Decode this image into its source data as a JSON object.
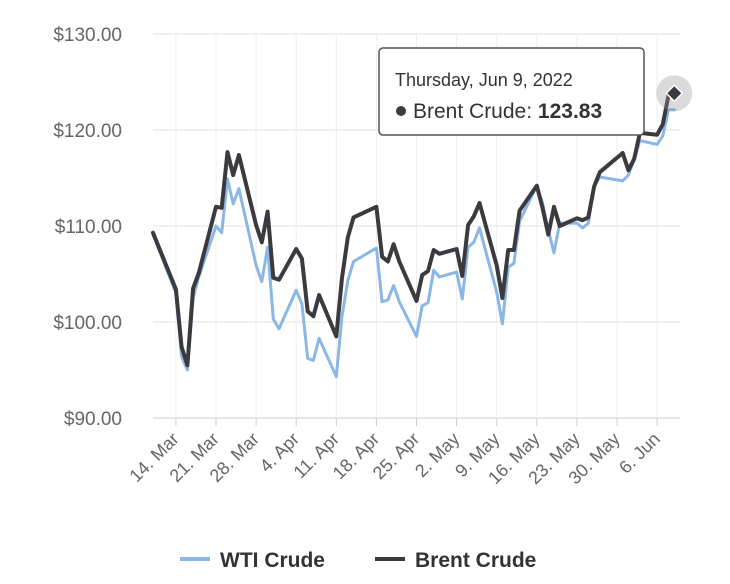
{
  "chart_data": {
    "type": "line",
    "title": "",
    "xlabel": "",
    "ylabel": "",
    "ylim": [
      90,
      130
    ],
    "y_ticks": [
      "$90.00",
      "$100.00",
      "$110.00",
      "$120.00",
      "$130.00"
    ],
    "x_ticks": [
      "14. Mar",
      "21. Mar",
      "28. Mar",
      "4. Apr",
      "11. Apr",
      "18. Apr",
      "25. Apr",
      "2. May",
      "9. May",
      "16. May",
      "23. May",
      "30. May",
      "6. Jun"
    ],
    "x_range": [
      "2022-03-10",
      "2022-06-10"
    ],
    "grid": true,
    "legend_position": "bottom",
    "series": [
      {
        "name": "WTI Crude",
        "color": "#8bb7e6",
        "points": [
          [
            "2022-03-10",
            109.1
          ],
          [
            "2022-03-14",
            103.0
          ],
          [
            "2022-03-15",
            96.4
          ],
          [
            "2022-03-16",
            95.0
          ],
          [
            "2022-03-17",
            102.5
          ],
          [
            "2022-03-18",
            104.7
          ],
          [
            "2022-03-21",
            110.0
          ],
          [
            "2022-03-22",
            109.3
          ],
          [
            "2022-03-23",
            114.9
          ],
          [
            "2022-03-24",
            112.3
          ],
          [
            "2022-03-25",
            113.9
          ],
          [
            "2022-03-28",
            105.9
          ],
          [
            "2022-03-29",
            104.2
          ],
          [
            "2022-03-30",
            107.8
          ],
          [
            "2022-03-31",
            100.3
          ],
          [
            "2022-04-01",
            99.3
          ],
          [
            "2022-04-04",
            103.3
          ],
          [
            "2022-04-05",
            101.9
          ],
          [
            "2022-04-06",
            96.2
          ],
          [
            "2022-04-07",
            96.0
          ],
          [
            "2022-04-08",
            98.3
          ],
          [
            "2022-04-11",
            94.3
          ],
          [
            "2022-04-12",
            100.6
          ],
          [
            "2022-04-13",
            104.3
          ],
          [
            "2022-04-14",
            106.3
          ],
          [
            "2022-04-18",
            107.7
          ],
          [
            "2022-04-19",
            102.1
          ],
          [
            "2022-04-20",
            102.3
          ],
          [
            "2022-04-21",
            103.8
          ],
          [
            "2022-04-22",
            102.1
          ],
          [
            "2022-04-25",
            98.5
          ],
          [
            "2022-04-26",
            101.7
          ],
          [
            "2022-04-27",
            102.0
          ],
          [
            "2022-04-28",
            105.4
          ],
          [
            "2022-04-29",
            104.7
          ],
          [
            "2022-05-02",
            105.2
          ],
          [
            "2022-05-03",
            102.4
          ],
          [
            "2022-05-04",
            107.8
          ],
          [
            "2022-05-05",
            108.3
          ],
          [
            "2022-05-06",
            109.8
          ],
          [
            "2022-05-09",
            103.1
          ],
          [
            "2022-05-10",
            99.8
          ],
          [
            "2022-05-11",
            105.7
          ],
          [
            "2022-05-12",
            106.1
          ],
          [
            "2022-05-13",
            110.5
          ],
          [
            "2022-05-16",
            114.2
          ],
          [
            "2022-05-17",
            112.4
          ],
          [
            "2022-05-18",
            109.6
          ],
          [
            "2022-05-19",
            107.2
          ],
          [
            "2022-05-20",
            110.3
          ],
          [
            "2022-05-23",
            110.3
          ],
          [
            "2022-05-24",
            109.8
          ],
          [
            "2022-05-25",
            110.3
          ],
          [
            "2022-05-26",
            114.1
          ],
          [
            "2022-05-27",
            115.1
          ],
          [
            "2022-05-31",
            114.7
          ],
          [
            "2022-06-01",
            115.3
          ],
          [
            "2022-06-02",
            116.9
          ],
          [
            "2022-06-03",
            118.9
          ],
          [
            "2022-06-06",
            118.5
          ],
          [
            "2022-06-07",
            119.4
          ],
          [
            "2022-06-08",
            122.1
          ],
          [
            "2022-06-09",
            122.1
          ]
        ]
      },
      {
        "name": "Brent Crude",
        "color": "#3a3a3f",
        "points": [
          [
            "2022-03-10",
            109.3
          ],
          [
            "2022-03-14",
            103.4
          ],
          [
            "2022-03-15",
            97.4
          ],
          [
            "2022-03-16",
            95.5
          ],
          [
            "2022-03-17",
            103.5
          ],
          [
            "2022-03-18",
            105.1
          ],
          [
            "2022-03-21",
            112.0
          ],
          [
            "2022-03-22",
            111.9
          ],
          [
            "2022-03-23",
            117.7
          ],
          [
            "2022-03-24",
            115.3
          ],
          [
            "2022-03-25",
            117.4
          ],
          [
            "2022-03-28",
            110.1
          ],
          [
            "2022-03-29",
            108.3
          ],
          [
            "2022-03-30",
            111.5
          ],
          [
            "2022-03-31",
            104.6
          ],
          [
            "2022-04-01",
            104.4
          ],
          [
            "2022-04-04",
            107.6
          ],
          [
            "2022-04-05",
            106.6
          ],
          [
            "2022-04-06",
            101.1
          ],
          [
            "2022-04-07",
            100.6
          ],
          [
            "2022-04-08",
            102.8
          ],
          [
            "2022-04-11",
            98.5
          ],
          [
            "2022-04-12",
            104.6
          ],
          [
            "2022-04-13",
            108.8
          ],
          [
            "2022-04-14",
            110.9
          ],
          [
            "2022-04-18",
            112.0
          ],
          [
            "2022-04-19",
            106.8
          ],
          [
            "2022-04-20",
            106.3
          ],
          [
            "2022-04-21",
            108.1
          ],
          [
            "2022-04-22",
            106.3
          ],
          [
            "2022-04-25",
            102.2
          ],
          [
            "2022-04-26",
            104.9
          ],
          [
            "2022-04-27",
            105.3
          ],
          [
            "2022-04-28",
            107.5
          ],
          [
            "2022-04-29",
            107.1
          ],
          [
            "2022-05-02",
            107.6
          ],
          [
            "2022-05-03",
            104.8
          ],
          [
            "2022-05-04",
            110.1
          ],
          [
            "2022-05-05",
            111.0
          ],
          [
            "2022-05-06",
            112.4
          ],
          [
            "2022-05-09",
            105.9
          ],
          [
            "2022-05-10",
            102.5
          ],
          [
            "2022-05-11",
            107.5
          ],
          [
            "2022-05-12",
            107.5
          ],
          [
            "2022-05-13",
            111.6
          ],
          [
            "2022-05-16",
            114.2
          ],
          [
            "2022-05-17",
            111.9
          ],
          [
            "2022-05-18",
            109.1
          ],
          [
            "2022-05-19",
            112.0
          ],
          [
            "2022-05-20",
            110.0
          ],
          [
            "2022-05-23",
            110.8
          ],
          [
            "2022-05-24",
            110.6
          ],
          [
            "2022-05-25",
            110.9
          ],
          [
            "2022-05-26",
            114.1
          ],
          [
            "2022-05-27",
            115.6
          ],
          [
            "2022-05-31",
            117.6
          ],
          [
            "2022-06-01",
            115.8
          ],
          [
            "2022-06-02",
            117.0
          ],
          [
            "2022-06-03",
            119.7
          ],
          [
            "2022-06-06",
            119.5
          ],
          [
            "2022-06-07",
            120.6
          ],
          [
            "2022-06-08",
            123.6
          ],
          [
            "2022-06-09",
            123.83
          ]
        ]
      }
    ],
    "tooltip": {
      "date": "Thursday, Jun 9, 2022",
      "series": "Brent Crude",
      "value": "123.83",
      "value_label": "Brent Crude: "
    }
  }
}
